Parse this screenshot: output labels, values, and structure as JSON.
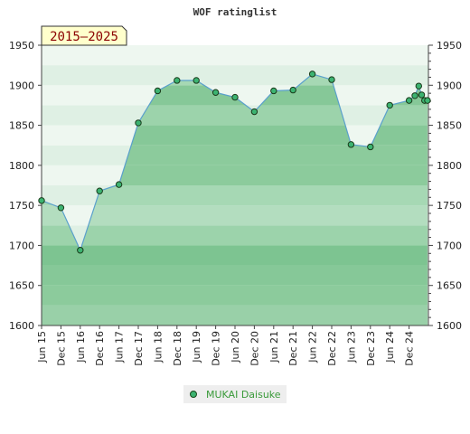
{
  "chart_data": {
    "type": "area",
    "title": "WOF ratinglist",
    "period_badge": "2015–2025",
    "xlabel": "",
    "ylabel": "",
    "ylim": [
      1600,
      1950
    ],
    "y_ticks": [
      1600,
      1650,
      1700,
      1750,
      1800,
      1850,
      1900,
      1950
    ],
    "x_tick_labels": [
      "Jun 15",
      "Dec 15",
      "Jun 16",
      "Dec 16",
      "Jun 17",
      "Dec 17",
      "Jun 18",
      "Dec 18",
      "Jun 19",
      "Dec 19",
      "Jun 20",
      "Dec 20",
      "Jun 21",
      "Dec 21",
      "Jun 22",
      "Dec 22",
      "Jun 23",
      "Dec 23",
      "Jun 24",
      "Dec 24"
    ],
    "legend_position": "bottom",
    "grid": true,
    "series": [
      {
        "name": "MUKAI Daisuke",
        "color": "#3cb371",
        "x": [
          0,
          1,
          2,
          3,
          4,
          5,
          6,
          7,
          8,
          9,
          10,
          11,
          12,
          13,
          14,
          15,
          16,
          17,
          18,
          19,
          19.3,
          19.5,
          19.65,
          19.8,
          19.95
        ],
        "values": [
          1756,
          1747,
          1694,
          1768,
          1776,
          1853,
          1893,
          1906,
          1906,
          1891,
          1885,
          1867,
          1893,
          1894,
          1914,
          1907,
          1826,
          1823,
          1875,
          1881,
          1887,
          1899,
          1888,
          1881,
          1881
        ]
      }
    ]
  }
}
